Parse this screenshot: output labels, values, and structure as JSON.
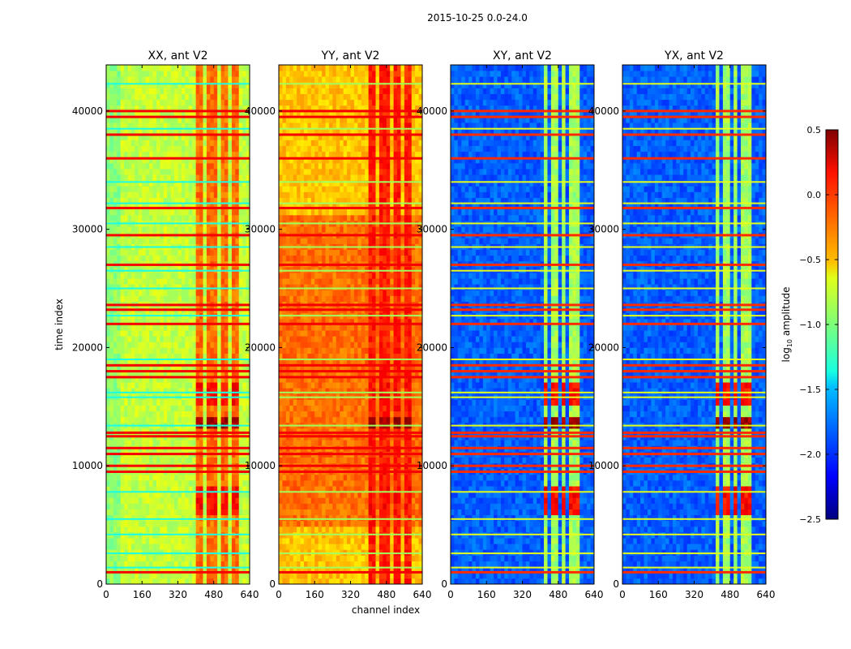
{
  "chart_data": {
    "type": "heatmap",
    "title": "2015-10-25 0.0-24.0",
    "xlabel": "channel index",
    "ylabel": "time index",
    "xlim": [
      0,
      640
    ],
    "ylim": [
      0,
      43900
    ],
    "xticks": [
      "0",
      "160",
      "320",
      "480",
      "640"
    ],
    "yticks": [
      "0",
      "10000",
      "20000",
      "30000",
      "40000"
    ],
    "colorbar": {
      "label": "log10 amplitude",
      "label_main": "log",
      "label_sub": "10",
      "label_rest": " amplitude",
      "colormap": "jet",
      "range": [
        -2.5,
        0.5
      ],
      "ticks": [
        "0.5",
        "0.0",
        "−0.5",
        "−1.0",
        "−1.5",
        "−2.0",
        "−2.5"
      ]
    },
    "panels": [
      {
        "title": "XX, ant V2",
        "base_value": -0.8,
        "left_edge_value": -0.95,
        "band_value": -0.2,
        "band_channels": [
          [
            400,
            440
          ],
          [
            445,
            500
          ],
          [
            505,
            545
          ],
          [
            555,
            595
          ]
        ],
        "stripe_value": 0.15,
        "alt_stripe_value": -1.3
      },
      {
        "title": "YY, ant V2",
        "base_value": -0.45,
        "mid_value": -0.2,
        "band_value": 0.05,
        "band_channels": [
          [
            400,
            440
          ],
          [
            445,
            500
          ],
          [
            505,
            545
          ],
          [
            555,
            595
          ]
        ],
        "stripe_value": 0.15,
        "alt_stripe_value": -0.9
      },
      {
        "title": "XY, ant V2",
        "base_value": -1.85,
        "band_value": -0.9,
        "band_channels": [
          [
            410,
            440
          ],
          [
            450,
            480
          ],
          [
            490,
            520
          ],
          [
            535,
            575
          ]
        ],
        "stripe_value": 0.0,
        "alt_stripe_value": -0.7
      },
      {
        "title": "YX, ant V2",
        "base_value": -1.85,
        "band_value": -0.9,
        "band_channels": [
          [
            410,
            440
          ],
          [
            450,
            480
          ],
          [
            490,
            520
          ],
          [
            535,
            575
          ]
        ],
        "stripe_value": 0.0,
        "alt_stripe_value": -0.7
      }
    ],
    "stripes_time": [
      1000,
      9500,
      10000,
      11000,
      11500,
      12500,
      12800,
      17500,
      18000,
      18500,
      22000,
      23200,
      23600,
      27000,
      29500,
      31800,
      36000,
      38000,
      39500,
      40000
    ],
    "alt_stripes_time": [
      1400,
      2600,
      4200,
      5500,
      7800,
      13400,
      15800,
      16200,
      19000,
      22700,
      25000,
      26500,
      28500,
      30500,
      32200,
      34000,
      38500,
      42300
    ],
    "bright_events": [
      {
        "time_range": [
          13000,
          14300
        ],
        "value": 0.4
      },
      {
        "time_range": [
          5800,
          8500
        ],
        "value": 0.1
      },
      {
        "time_range": [
          15000,
          17000
        ],
        "value": 0.1
      }
    ]
  }
}
